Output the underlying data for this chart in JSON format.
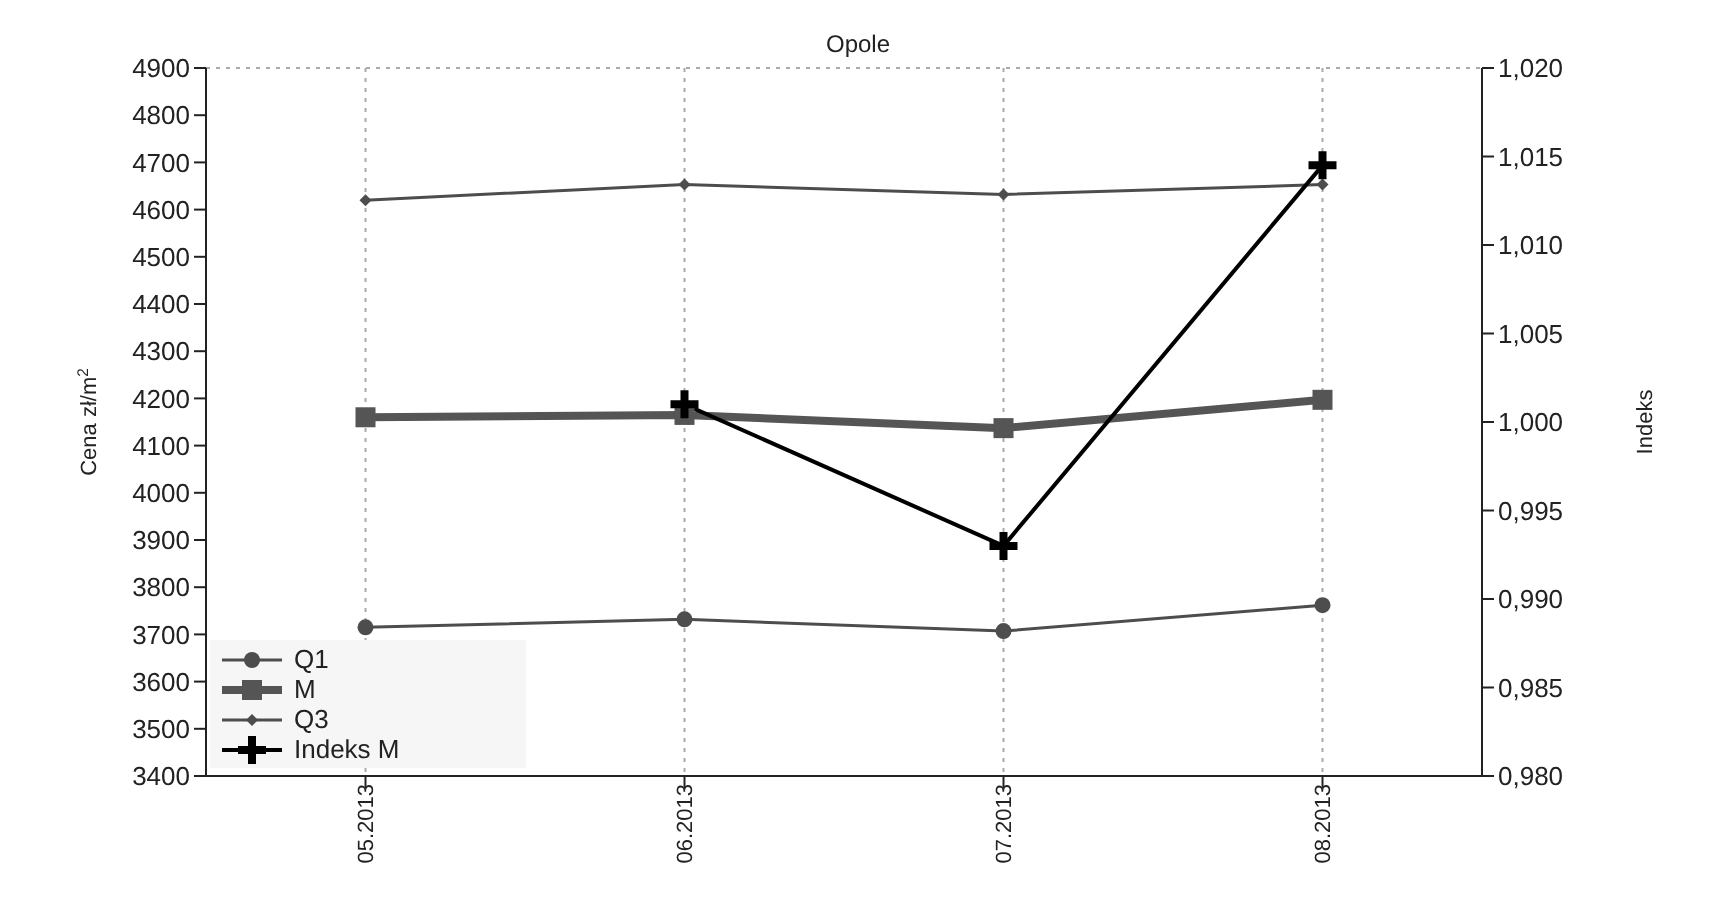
{
  "chart_data": {
    "type": "line",
    "title": "Opole",
    "ylabel": "Cena zł/m$^{2}$",
    "y2label": "Indeks",
    "categories": [
      "05.2013",
      "06.2013",
      "07.2013",
      "08.2013"
    ],
    "series": [
      {
        "name": "Q1",
        "color": "#4d4d4d",
        "marker": "circle",
        "values": [
          3715,
          3732,
          3707,
          3762
        ]
      },
      {
        "name": "M",
        "color": "#555555",
        "marker": "square",
        "values": [
          4160,
          4165,
          4137,
          4197
        ]
      },
      {
        "name": "Q3",
        "color": "#4d4d4d",
        "marker": "diamond",
        "values": [
          4620,
          4653,
          4632,
          4653
        ]
      },
      {
        "name": "Indeks M",
        "color": "#000000",
        "marker": "cross",
        "axis": "y2",
        "values": [
          null,
          1.001,
          0.993,
          1.0145
        ]
      }
    ],
    "ylim": [
      3400,
      4900
    ],
    "yticks": [
      3400,
      3500,
      3600,
      3700,
      3800,
      3900,
      4000,
      4100,
      4200,
      4300,
      4400,
      4500,
      4600,
      4700,
      4800,
      4900
    ],
    "y2lim": [
      0.98,
      1.02
    ],
    "y2ticks": [
      {
        "value": 0.98,
        "label": "0,980"
      },
      {
        "value": 0.985,
        "label": "0,985"
      },
      {
        "value": 0.99,
        "label": "0,990"
      },
      {
        "value": 0.995,
        "label": "0,995"
      },
      {
        "value": 1.0,
        "label": "1,000"
      },
      {
        "value": 1.005,
        "label": "1,005"
      },
      {
        "value": 1.01,
        "label": "1,010"
      },
      {
        "value": 1.015,
        "label": "1,015"
      },
      {
        "value": 1.02,
        "label": "1,020"
      }
    ],
    "grid": true,
    "legend": "bottom left",
    "line_style": "solid"
  }
}
